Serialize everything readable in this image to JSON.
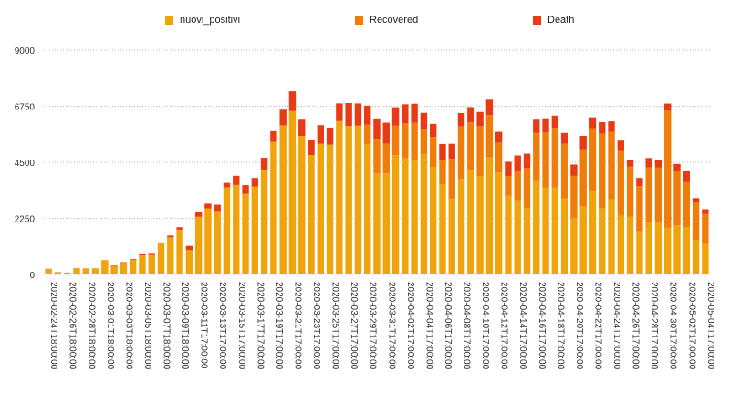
{
  "chart_data": {
    "type": "bar",
    "stacked": true,
    "grid": true,
    "legend_position": "top",
    "ylim": [
      0,
      9000
    ],
    "y_ticks": [
      "0",
      "2250",
      "4500",
      "6750",
      "9000"
    ],
    "categories": [
      "2020-02-24T18:00:00",
      "2020-02-25T18:00:00",
      "2020-02-26T18:00:00",
      "2020-02-27T18:00:00",
      "2020-02-28T18:00:00",
      "2020-02-29T17:00:00",
      "2020-03-01T18:00:00",
      "2020-03-02T18:00:00",
      "2020-03-03T18:00:00",
      "2020-03-04T17:00:00",
      "2020-03-05T18:00:00",
      "2020-03-06T17:00:00",
      "2020-03-07T18:00:00",
      "2020-03-08T18:00:00",
      "2020-03-09T18:00:00",
      "2020-03-10T18:00:00",
      "2020-03-11T17:00:00",
      "2020-03-12T17:00:00",
      "2020-03-13T17:00:00",
      "2020-03-14T17:00:00",
      "2020-03-15T17:00:00",
      "2020-03-16T17:00:00",
      "2020-03-17T17:00:00",
      "2020-03-18T17:00:00",
      "2020-03-19T17:00:00",
      "2020-03-20T17:00:00",
      "2020-03-21T17:00:00",
      "2020-03-22T17:00:00",
      "2020-03-23T17:00:00",
      "2020-03-24T17:00:00",
      "2020-03-25T17:00:00",
      "2020-03-26T17:00:00",
      "2020-03-27T17:00:00",
      "2020-03-28T17:00:00",
      "2020-03-29T17:00:00",
      "2020-03-30T17:00:00",
      "2020-03-31T17:00:00",
      "2020-04-01T17:00:00",
      "2020-04-02T17:00:00",
      "2020-04-03T17:00:00",
      "2020-04-04T17:00:00",
      "2020-04-05T17:00:00",
      "2020-04-06T17:00:00",
      "2020-04-07T17:00:00",
      "2020-04-08T17:00:00",
      "2020-04-09T17:00:00",
      "2020-04-10T17:00:00",
      "2020-04-11T17:00:00",
      "2020-04-12T17:00:00",
      "2020-04-13T17:00:00",
      "2020-04-14T17:00:00",
      "2020-04-15T17:00:00",
      "2020-04-16T17:00:00",
      "2020-04-17T17:00:00",
      "2020-04-18T17:00:00",
      "2020-04-19T17:00:00",
      "2020-04-20T17:00:00",
      "2020-04-21T17:00:00",
      "2020-04-22T17:00:00",
      "2020-04-23T17:00:00",
      "2020-04-24T17:00:00",
      "2020-04-25T17:00:00",
      "2020-04-26T17:00:00",
      "2020-04-27T17:00:00",
      "2020-04-28T17:00:00",
      "2020-04-29T17:00:00",
      "2020-04-30T17:00:00",
      "2020-05-01T17:00:00",
      "2020-05-02T17:00:00",
      "2020-05-03T17:00:00",
      "2020-05-04T17:00:00"
    ],
    "series": [
      {
        "name": "nuovi_positivi",
        "color": "#f0a30a",
        "values": [
          221,
          93,
          78,
          250,
          238,
          240,
          566,
          342,
          466,
          587,
          769,
          778,
          1247,
          1492,
          1797,
          977,
          2313,
          2651,
          2547,
          3497,
          3590,
          3233,
          3526,
          4207,
          5322,
          5986,
          6557,
          5560,
          4789,
          5249,
          5210,
          6153,
          5959,
          5974,
          5217,
          4050,
          4053,
          4782,
          4668,
          4585,
          4805,
          4316,
          3599,
          3039,
          3836,
          4204,
          3951,
          4694,
          4092,
          3153,
          2972,
          2667,
          3786,
          3493,
          3491,
          3047,
          2256,
          2729,
          3370,
          2646,
          3021,
          2357,
          2324,
          1739,
          2091,
          2086,
          1872,
          1965,
          1900,
          1389,
          1221
        ]
      },
      {
        "name": "Recovered",
        "color": "#f07c0a",
        "values": [
          0,
          0,
          0,
          0,
          0,
          0,
          0,
          0,
          0,
          0,
          0,
          0,
          0,
          0,
          0,
          0,
          0,
          0,
          0,
          0,
          0,
          0,
          0,
          0,
          0,
          0,
          0,
          0,
          0,
          0,
          0,
          0,
          0,
          0,
          800,
          1400,
          1200,
          1200,
          1400,
          1500,
          1000,
          1200,
          1000,
          1600,
          2100,
          1900,
          2000,
          1700,
          1200,
          800,
          1200,
          1600,
          1900,
          2200,
          2400,
          2200,
          1700,
          2300,
          2500,
          3000,
          2700,
          2600,
          2000,
          1800,
          2200,
          2200,
          4700,
          2200,
          1800,
          1500,
          1200
        ]
      },
      {
        "name": "Death",
        "color": "#e83a14",
        "values": [
          7,
          4,
          2,
          5,
          5,
          5,
          8,
          19,
          27,
          28,
          41,
          49,
          37,
          66,
          97,
          168,
          196,
          189,
          250,
          175,
          368,
          349,
          345,
          475,
          427,
          627,
          793,
          651,
          601,
          743,
          683,
          712,
          919,
          889,
          756,
          812,
          837,
          727,
          760,
          766,
          681,
          525,
          636,
          604,
          542,
          610,
          570,
          619,
          431,
          566,
          602,
          578,
          525,
          575,
          482,
          433,
          454,
          534,
          437,
          464,
          420,
          415,
          260,
          333,
          382,
          323,
          285,
          269,
          474,
          174,
          195
        ]
      }
    ]
  }
}
